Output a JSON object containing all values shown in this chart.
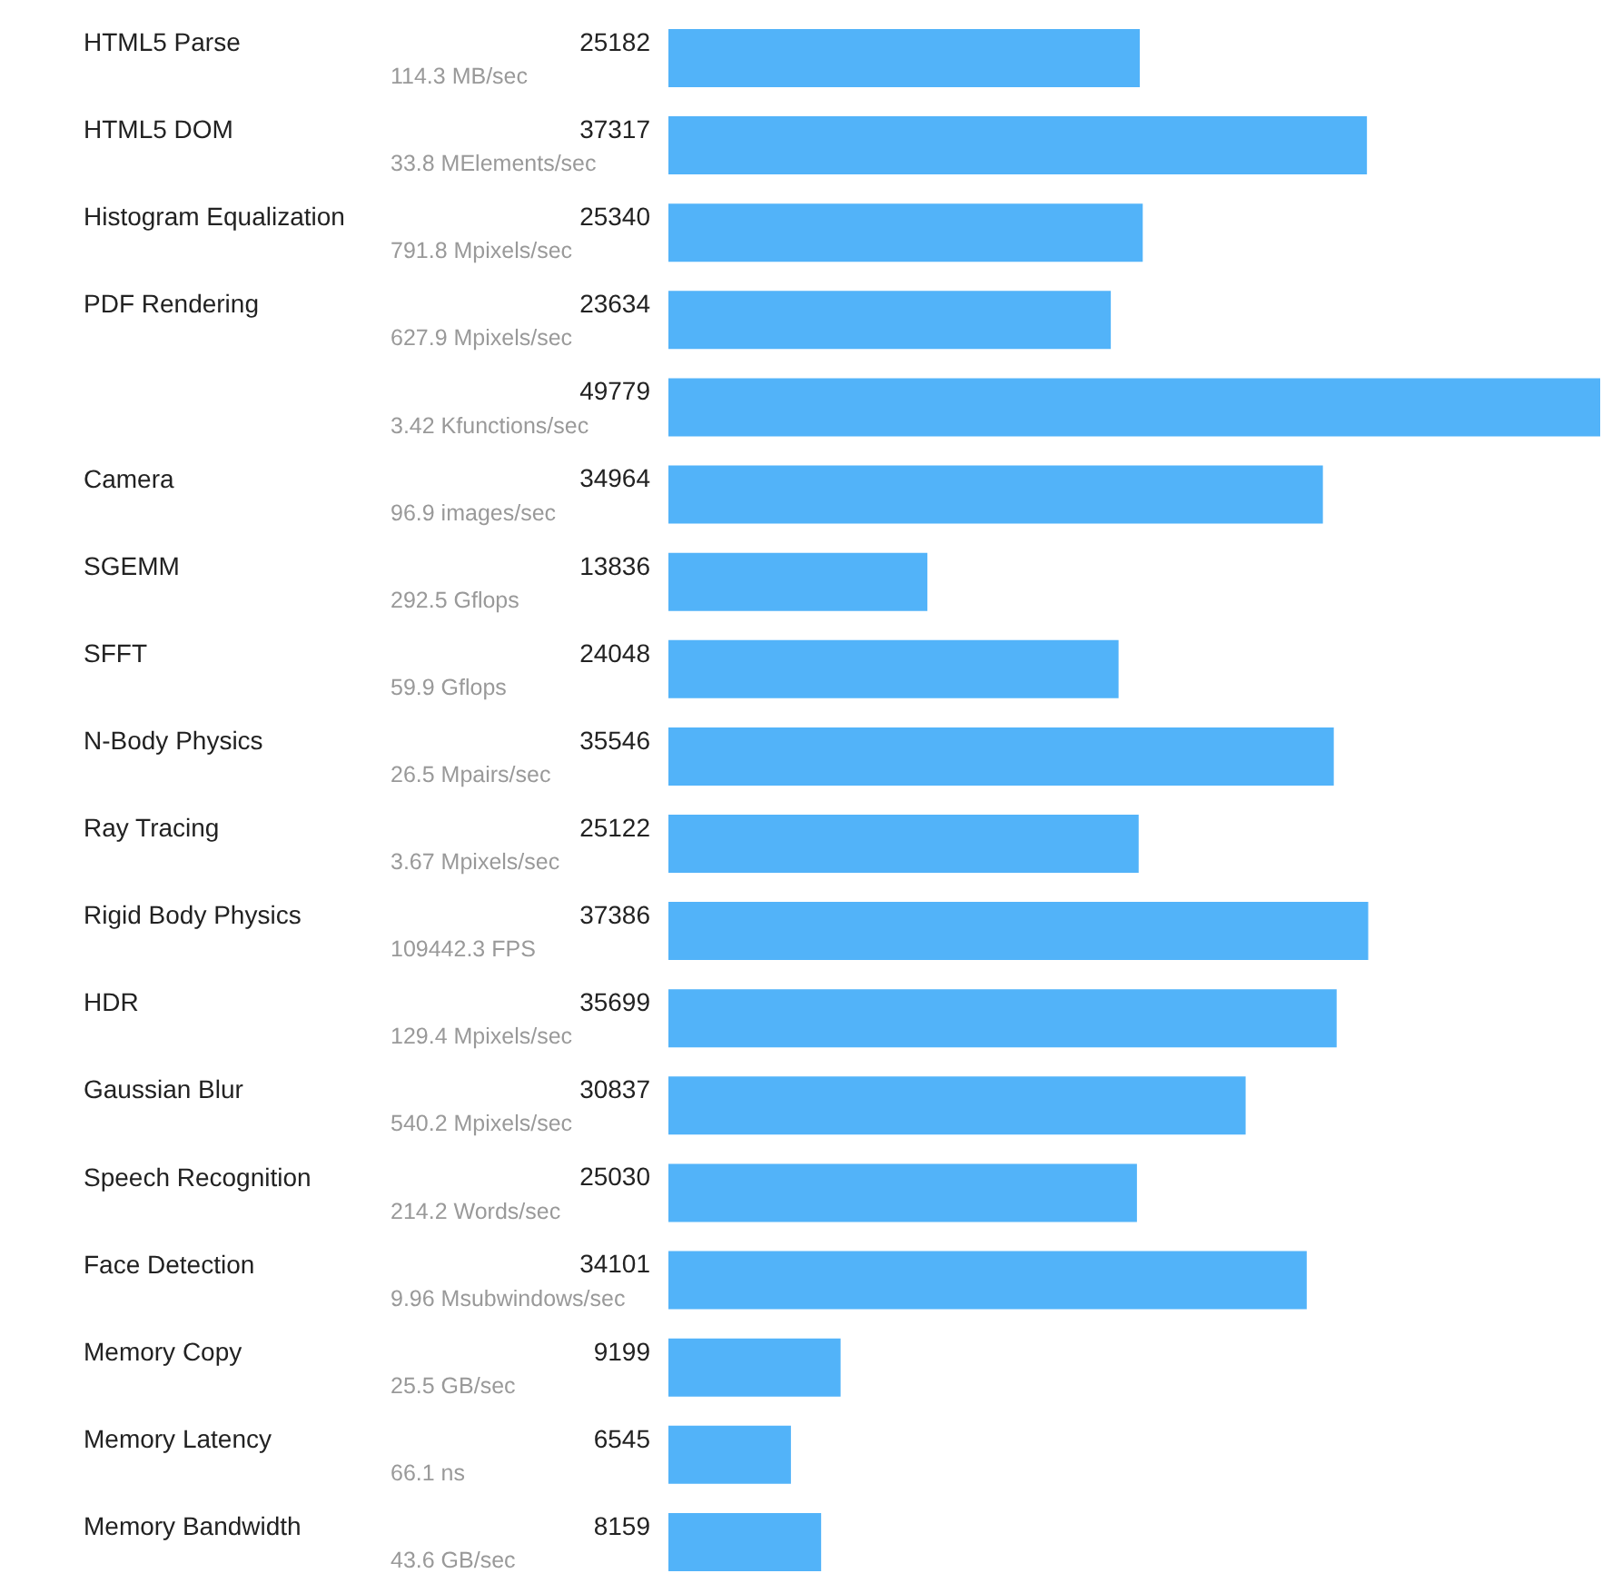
{
  "chart_data": {
    "type": "bar",
    "orientation": "horizontal",
    "categories": [
      "HTML5 Parse",
      "HTML5 DOM",
      "Histogram Equalization",
      "PDF Rendering",
      null,
      "Camera",
      "SGEMM",
      "SFFT",
      "N-Body Physics",
      "Ray Tracing",
      "Rigid Body Physics",
      "HDR",
      "Gaussian Blur",
      "Speech Recognition",
      "Face Detection",
      "Memory Copy",
      "Memory Latency",
      "Memory Bandwidth"
    ],
    "values": [
      25182,
      37317,
      25340,
      23634,
      49779,
      34964,
      13836,
      24048,
      35546,
      25122,
      37386,
      35699,
      30837,
      25030,
      34101,
      9199,
      6545,
      8159
    ],
    "color": "#52b3f9",
    "data_labels": true,
    "tick_labels": "y",
    "grid": false,
    "legend": false,
    "annotations": [
      "114.3 MB/sec",
      "33.8 MElements/sec",
      "791.8 Mpixels/sec",
      "627.9 Mpixels/sec",
      "3.42 Kfunctions/sec",
      "96.9 images/sec",
      "292.5 Gflops",
      "59.9 Gflops",
      "26.5 Mpairs/sec",
      "3.67 Mpixels/sec",
      "109442.3 FPS",
      "129.4 Mpixels/sec",
      "540.2 Mpixels/sec",
      "214.2 Words/sec",
      "9.96 Msubwindows/sec",
      "25.5 GB/sec",
      "66.1 ns",
      "43.6 GB/sec"
    ]
  }
}
